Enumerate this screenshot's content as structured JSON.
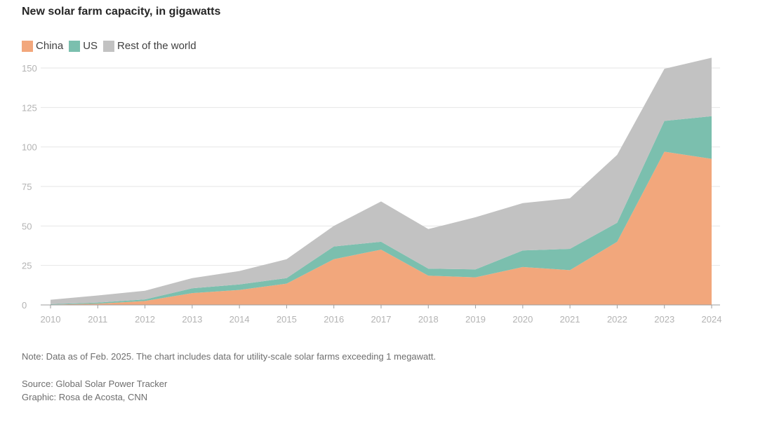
{
  "title": "New solar farm capacity, in gigawatts",
  "note": "Note: Data as of Feb. 2025. The chart includes data for utility-scale solar farms exceeding 1 megawatt.",
  "source": "Source: Global Solar Power Tracker",
  "graphic": "Graphic: Rosa de Acosta, CNN",
  "chart_data": {
    "type": "area",
    "stacked": true,
    "title": "New solar farm capacity, in gigawatts",
    "x": [
      "2010",
      "2011",
      "2012",
      "2013",
      "2014",
      "2015",
      "2016",
      "2017",
      "2018",
      "2019",
      "2020",
      "2021",
      "2022",
      "2023",
      "2024"
    ],
    "ylim": [
      0,
      157
    ],
    "yticks": [
      "0",
      "25",
      "50",
      "75",
      "100",
      "125",
      "150"
    ],
    "grid": true,
    "legend_position": "top-left",
    "series": [
      {
        "name": "China",
        "color": "#f2a77c",
        "values": [
          0.2,
          0.8,
          2.5,
          7.5,
          9.5,
          13.5,
          29,
          35,
          18.5,
          17.5,
          24,
          22,
          40,
          97,
          92.5
        ]
      },
      {
        "name": "US",
        "color": "#7bbfae",
        "values": [
          0.3,
          0.7,
          1,
          3,
          3.5,
          3.5,
          8,
          5,
          4.5,
          5,
          10.5,
          13.5,
          12,
          19.5,
          27
        ]
      },
      {
        "name": "Rest of the world",
        "color": "#c2c2c2",
        "values": [
          2.8,
          4.5,
          5.5,
          6.5,
          8.5,
          12,
          13,
          25.5,
          25,
          33,
          30,
          32,
          43,
          33,
          37
        ]
      }
    ]
  }
}
